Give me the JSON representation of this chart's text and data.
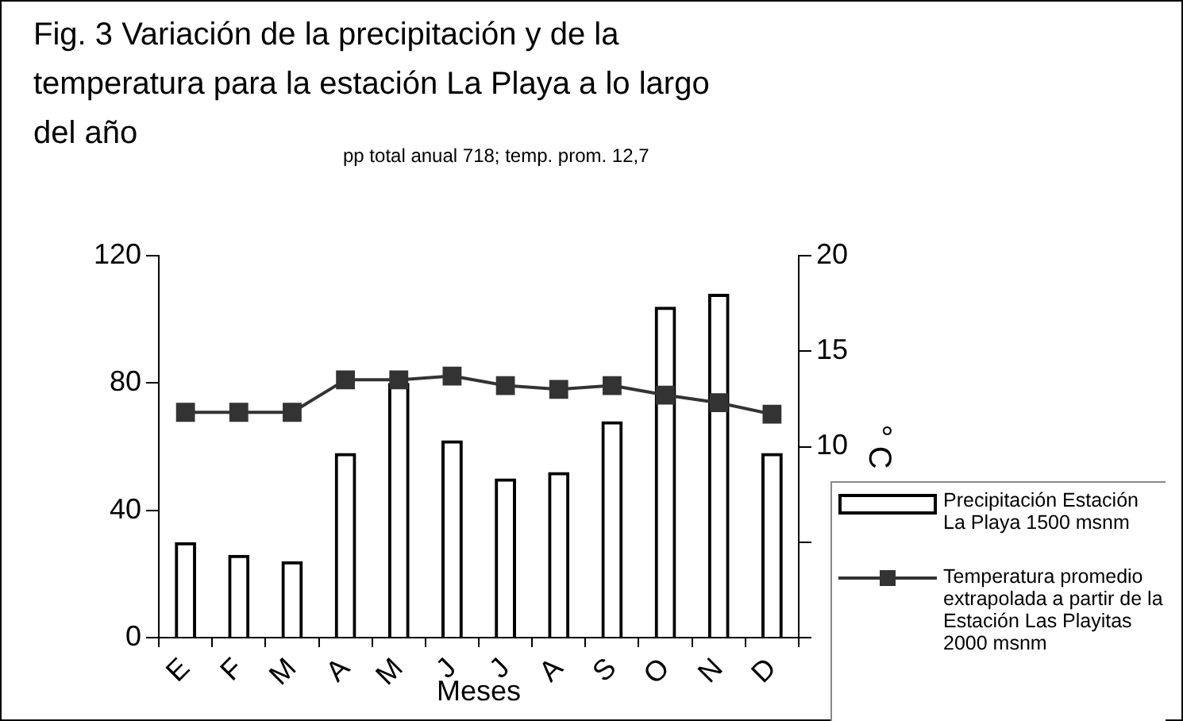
{
  "chart_data": {
    "type": "bar",
    "title": "Fig. 3   Variación de la precipitación y de la temperatura para la estación La Playa a lo largo del año",
    "annotations": [
      "pp total anual 718;  temp. prom. 12,7"
    ],
    "xlabel": "Meses",
    "y2label": "° C",
    "categories": [
      "E",
      "F",
      "M",
      "A",
      "M",
      "J",
      "J",
      "A",
      "S",
      "O",
      "N",
      "D"
    ],
    "series": [
      {
        "name": "Precipitación Estación La Playa 1500 msnm",
        "color": "#000000",
        "values": [
          30,
          26,
          24,
          58,
          80,
          62,
          50,
          52,
          68,
          104,
          108,
          58
        ]
      },
      {
        "name": "Temperatura promedio extrapolada a partir de la Estación Las Playitas 2000 msnm",
        "type": "line",
        "axis": "y2",
        "color": "#333333",
        "values": [
          11.8,
          11.8,
          11.8,
          13.5,
          13.5,
          13.7,
          13.2,
          13.0,
          13.2,
          12.7,
          12.3,
          11.7
        ]
      }
    ],
    "ylim": [
      0,
      120
    ],
    "yticks": [
      0,
      40,
      80,
      120
    ],
    "y2lim": [
      0,
      20
    ],
    "y2ticks": [
      {
        "value": 0,
        "label": null
      },
      {
        "value": 5,
        "label": null
      },
      10,
      15,
      20
    ],
    "grid": false,
    "legend": "right",
    "marker": "square",
    "line_style": "solid"
  }
}
